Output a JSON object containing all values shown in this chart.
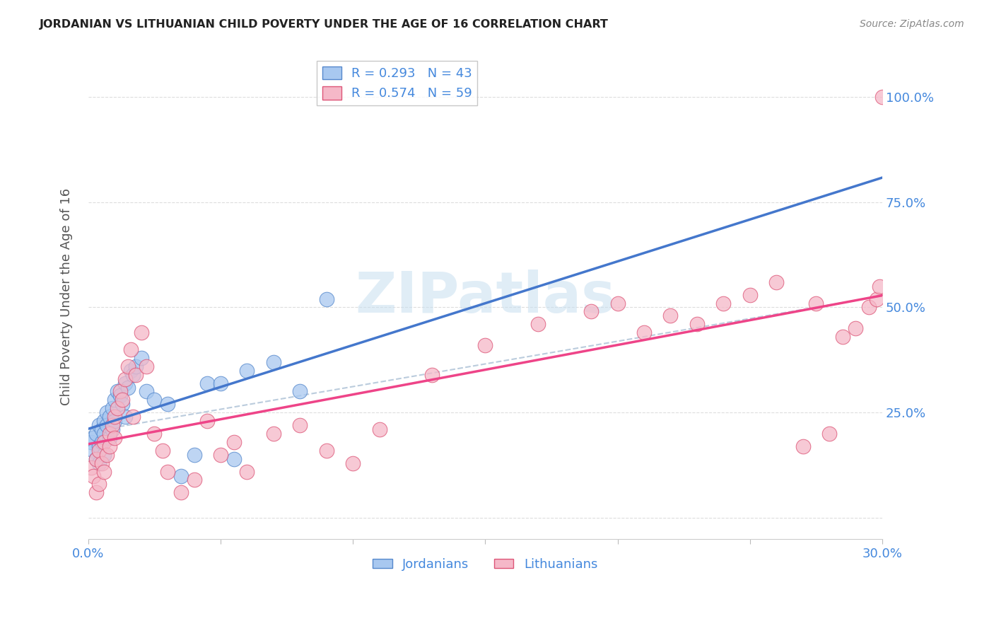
{
  "title": "JORDANIAN VS LITHUANIAN CHILD POVERTY UNDER THE AGE OF 16 CORRELATION CHART",
  "source": "Source: ZipAtlas.com",
  "ylabel": "Child Poverty Under the Age of 16",
  "xlim": [
    0.0,
    0.3
  ],
  "ylim": [
    -0.05,
    1.1
  ],
  "yticks": [
    0.0,
    0.25,
    0.5,
    0.75,
    1.0
  ],
  "ytick_labels": [
    "",
    "25.0%",
    "50.0%",
    "75.0%",
    "100.0%"
  ],
  "xticks": [
    0.0,
    0.05,
    0.1,
    0.15,
    0.2,
    0.25,
    0.3
  ],
  "xtick_labels": [
    "0.0%",
    "",
    "",
    "",
    "",
    "",
    "30.0%"
  ],
  "color_jordanian_fill": "#A8C8F0",
  "color_jordanian_edge": "#5588CC",
  "color_lithuanian_fill": "#F5B8C8",
  "color_lithuanian_edge": "#DD5577",
  "color_line_jordanian": "#4477CC",
  "color_line_lithuanian": "#EE4488",
  "color_dash": "#BBCCDD",
  "color_axis_label": "#4488DD",
  "color_grid": "#DDDDDD",
  "R_jordanian": 0.293,
  "N_jordanian": 43,
  "R_lithuanian": 0.574,
  "N_lithuanian": 59,
  "watermark": "ZIPatlas",
  "jx": [
    0.001,
    0.002,
    0.002,
    0.003,
    0.003,
    0.004,
    0.004,
    0.004,
    0.005,
    0.005,
    0.006,
    0.006,
    0.006,
    0.007,
    0.007,
    0.008,
    0.008,
    0.009,
    0.009,
    0.01,
    0.01,
    0.011,
    0.012,
    0.013,
    0.014,
    0.014,
    0.015,
    0.016,
    0.017,
    0.018,
    0.02,
    0.022,
    0.025,
    0.03,
    0.035,
    0.04,
    0.045,
    0.05,
    0.055,
    0.06,
    0.07,
    0.08,
    0.09
  ],
  "jy": [
    0.18,
    0.19,
    0.16,
    0.2,
    0.14,
    0.22,
    0.17,
    0.13,
    0.21,
    0.18,
    0.23,
    0.2,
    0.15,
    0.25,
    0.22,
    0.24,
    0.19,
    0.26,
    0.21,
    0.28,
    0.23,
    0.3,
    0.29,
    0.27,
    0.32,
    0.24,
    0.31,
    0.35,
    0.34,
    0.36,
    0.38,
    0.3,
    0.28,
    0.27,
    0.1,
    0.15,
    0.32,
    0.32,
    0.14,
    0.35,
    0.37,
    0.3,
    0.52
  ],
  "lx": [
    0.001,
    0.002,
    0.003,
    0.003,
    0.004,
    0.004,
    0.005,
    0.006,
    0.006,
    0.007,
    0.008,
    0.008,
    0.009,
    0.01,
    0.01,
    0.011,
    0.012,
    0.013,
    0.014,
    0.015,
    0.016,
    0.017,
    0.018,
    0.02,
    0.022,
    0.025,
    0.028,
    0.03,
    0.035,
    0.04,
    0.045,
    0.05,
    0.055,
    0.06,
    0.07,
    0.08,
    0.09,
    0.1,
    0.11,
    0.13,
    0.15,
    0.17,
    0.19,
    0.2,
    0.21,
    0.22,
    0.23,
    0.24,
    0.25,
    0.26,
    0.27,
    0.275,
    0.28,
    0.285,
    0.29,
    0.295,
    0.298,
    0.299,
    0.3
  ],
  "ly": [
    0.12,
    0.1,
    0.06,
    0.14,
    0.16,
    0.08,
    0.13,
    0.18,
    0.11,
    0.15,
    0.2,
    0.17,
    0.22,
    0.19,
    0.24,
    0.26,
    0.3,
    0.28,
    0.33,
    0.36,
    0.4,
    0.24,
    0.34,
    0.44,
    0.36,
    0.2,
    0.16,
    0.11,
    0.06,
    0.09,
    0.23,
    0.15,
    0.18,
    0.11,
    0.2,
    0.22,
    0.16,
    0.13,
    0.21,
    0.34,
    0.41,
    0.46,
    0.49,
    0.51,
    0.44,
    0.48,
    0.46,
    0.51,
    0.53,
    0.56,
    0.17,
    0.51,
    0.2,
    0.43,
    0.45,
    0.5,
    0.52,
    0.55,
    1.0
  ]
}
